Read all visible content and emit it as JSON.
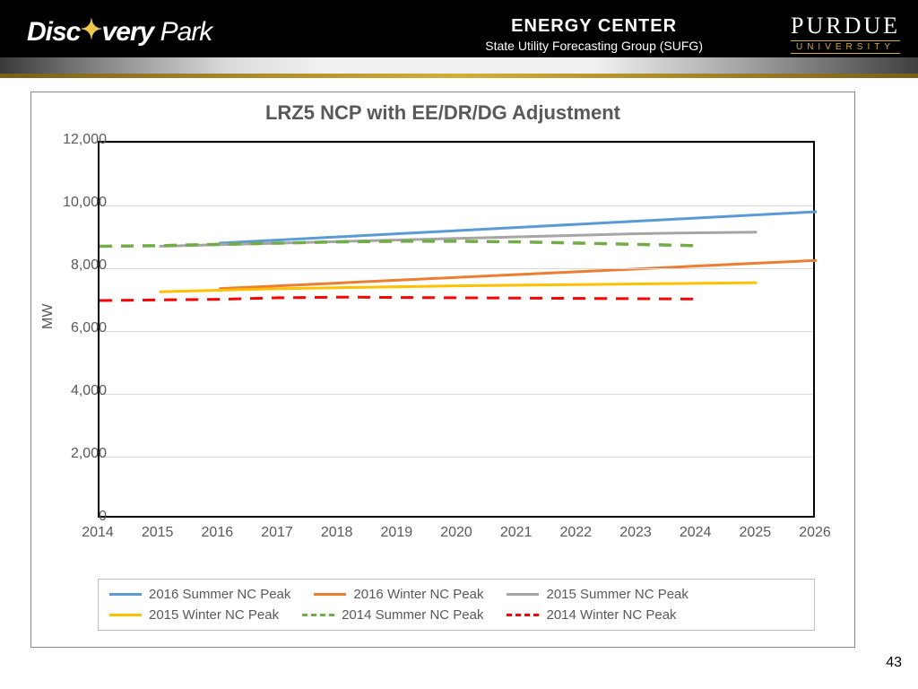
{
  "header": {
    "logo_left_1": "Disc",
    "logo_left_spark": "✦",
    "logo_left_2": "very",
    "logo_left_3": "Park",
    "center_title": "ENERGY CENTER",
    "center_sub": "State Utility Forecasting Group (SUFG)",
    "purdue_name": "PURDUE",
    "purdue_uni": "UNIVERSITY"
  },
  "slide_number": "43",
  "chart": {
    "title": "LRZ5 NCP with EE/DR/DG Adjustment",
    "type": "line",
    "y_axis_label": "MW",
    "xlim": [
      2014,
      2026
    ],
    "ylim": [
      0,
      12000
    ],
    "ytick_step": 2000,
    "x_ticks": [
      2014,
      2015,
      2016,
      2017,
      2018,
      2019,
      2020,
      2021,
      2022,
      2023,
      2024,
      2025,
      2026
    ],
    "y_ticks": [
      0,
      2000,
      4000,
      6000,
      8000,
      10000,
      12000
    ],
    "y_tick_labels": [
      "0",
      "2,000",
      "4,000",
      "6,000",
      "8,000",
      "10,000",
      "12,000"
    ],
    "plot_border_color": "#000000",
    "grid_color": "#d9d9d9",
    "background_color": "#ffffff",
    "title_fontsize": 22,
    "tick_fontsize": 16,
    "series": [
      {
        "name": "2016 Summer NC Peak",
        "color": "#5b9bd5",
        "dash": "solid",
        "width": 3,
        "x": [
          2016,
          2017,
          2018,
          2019,
          2020,
          2021,
          2022,
          2023,
          2024,
          2025,
          2026
        ],
        "y": [
          8800,
          8900,
          9000,
          9100,
          9200,
          9300,
          9400,
          9500,
          9600,
          9700,
          9800
        ]
      },
      {
        "name": "2016 Winter NC Peak",
        "color": "#ed7d31",
        "dash": "solid",
        "width": 3,
        "x": [
          2016,
          2017,
          2018,
          2019,
          2020,
          2021,
          2022,
          2023,
          2024,
          2025,
          2026
        ],
        "y": [
          7350,
          7440,
          7530,
          7620,
          7710,
          7800,
          7890,
          7980,
          8070,
          8160,
          8250
        ]
      },
      {
        "name": "2015 Summer NC Peak",
        "color": "#a5a5a5",
        "dash": "solid",
        "width": 3,
        "x": [
          2015,
          2016,
          2017,
          2018,
          2019,
          2020,
          2021,
          2022,
          2023,
          2024,
          2025
        ],
        "y": [
          8700,
          8750,
          8800,
          8850,
          8900,
          8950,
          9000,
          9050,
          9100,
          9130,
          9150
        ]
      },
      {
        "name": "2015 Winter NC Peak",
        "color": "#ffc000",
        "dash": "solid",
        "width": 3,
        "x": [
          2015,
          2016,
          2017,
          2018,
          2019,
          2020,
          2021,
          2022,
          2023,
          2024,
          2025
        ],
        "y": [
          7250,
          7300,
          7350,
          7380,
          7410,
          7440,
          7460,
          7480,
          7500,
          7520,
          7540
        ]
      },
      {
        "name": "2014 Summer NC Peak",
        "color": "#70ad47",
        "dash": "dashed",
        "width": 3.5,
        "x": [
          2014,
          2015,
          2016,
          2017,
          2018,
          2019,
          2020,
          2021,
          2022,
          2023,
          2024
        ],
        "y": [
          8700,
          8720,
          8760,
          8800,
          8840,
          8860,
          8860,
          8840,
          8800,
          8760,
          8720
        ]
      },
      {
        "name": "2014 Winter NC Peak",
        "color": "#ff0000",
        "dash": "dashed",
        "width": 3,
        "x": [
          2014,
          2015,
          2016,
          2017,
          2018,
          2019,
          2020,
          2021,
          2022,
          2023,
          2024
        ],
        "y": [
          6970,
          6990,
          7010,
          7060,
          7080,
          7070,
          7060,
          7050,
          7040,
          7030,
          7020
        ]
      }
    ]
  }
}
